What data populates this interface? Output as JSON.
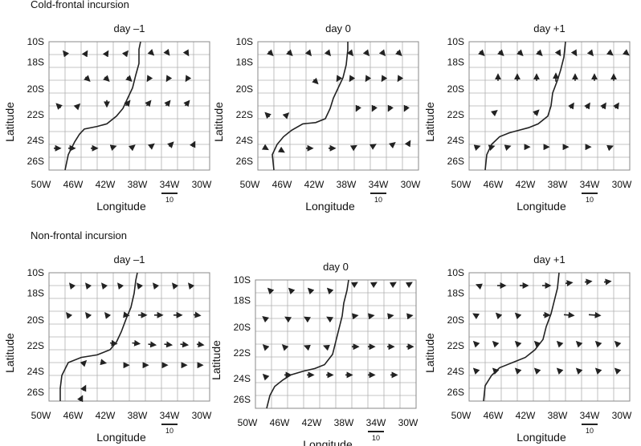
{
  "sections": [
    {
      "title": "Cold-frontal incursion",
      "panels": [
        {
          "day_label": "day –1"
        },
        {
          "day_label": "day 0"
        },
        {
          "day_label": "day +1"
        }
      ]
    },
    {
      "title": "Non-frontal incursion",
      "panels": [
        {
          "day_label": "day –1"
        },
        {
          "day_label": "day 0"
        },
        {
          "day_label": "day +1"
        }
      ]
    }
  ],
  "axes": {
    "ylabel": "Latitude",
    "xlabel": "Longitude",
    "lat_ticks": [
      "10S",
      "18S",
      "20S",
      "22S",
      "24S",
      "26S"
    ],
    "lon_ticks": [
      "50W",
      "46W",
      "42W",
      "38W",
      "34W",
      "30W"
    ],
    "scale_label": "10"
  },
  "colors": {
    "line": "#222222",
    "grid": "#b0b0b0",
    "text": "#111111"
  }
}
